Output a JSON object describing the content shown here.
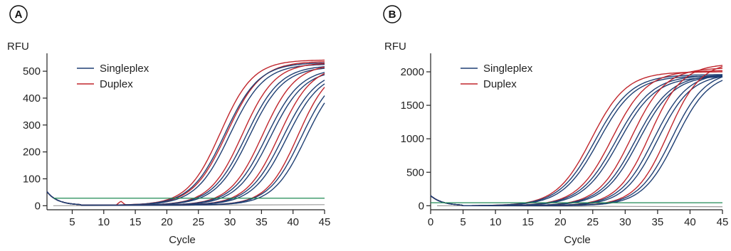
{
  "chart_data": [
    {
      "panel": "A",
      "type": "line",
      "ylabel": "RFU",
      "xlabel": "Cycle",
      "xlim": [
        1,
        45
      ],
      "ylim": [
        -15,
        540
      ],
      "xticks": [
        5,
        10,
        15,
        20,
        25,
        30,
        35,
        40,
        45
      ],
      "yticks": [
        0,
        100,
        200,
        300,
        400,
        500
      ],
      "legend_position": "top-left",
      "threshold": 28,
      "legend": [
        {
          "name": "Singleplex",
          "color": "#1f3f73"
        },
        {
          "name": "Duplex",
          "color": "#c0262d"
        }
      ],
      "series": [
        {
          "group": "Duplex",
          "midpoint": 28.5,
          "plateau": 540,
          "slope": 2.6
        },
        {
          "group": "Duplex",
          "midpoint": 29.5,
          "plateau": 535,
          "slope": 2.7
        },
        {
          "group": "Singleplex",
          "midpoint": 29.2,
          "plateau": 530,
          "slope": 2.7
        },
        {
          "group": "Singleplex",
          "midpoint": 30.0,
          "plateau": 525,
          "slope": 2.7
        },
        {
          "group": "Duplex",
          "midpoint": 32.0,
          "plateau": 530,
          "slope": 2.6
        },
        {
          "group": "Singleplex",
          "midpoint": 32.6,
          "plateau": 520,
          "slope": 2.7
        },
        {
          "group": "Singleplex",
          "midpoint": 33.1,
          "plateau": 515,
          "slope": 2.7
        },
        {
          "group": "Duplex",
          "midpoint": 35.2,
          "plateau": 525,
          "slope": 2.6
        },
        {
          "group": "Singleplex",
          "midpoint": 35.8,
          "plateau": 510,
          "slope": 2.7
        },
        {
          "group": "Singleplex",
          "midpoint": 36.4,
          "plateau": 505,
          "slope": 2.7
        },
        {
          "group": "Duplex",
          "midpoint": 37.8,
          "plateau": 520,
          "slope": 2.6
        },
        {
          "group": "Singleplex",
          "midpoint": 38.4,
          "plateau": 505,
          "slope": 2.7
        },
        {
          "group": "Singleplex",
          "midpoint": 39.0,
          "plateau": 500,
          "slope": 2.7
        },
        {
          "group": "Duplex",
          "midpoint": 40.8,
          "plateau": 520,
          "slope": 2.5
        },
        {
          "group": "Singleplex",
          "midpoint": 41.3,
          "plateau": 505,
          "slope": 2.6
        },
        {
          "group": "Singleplex",
          "midpoint": 42.0,
          "plateau": 500,
          "slope": 2.6
        }
      ]
    },
    {
      "panel": "B",
      "type": "line",
      "ylabel": "RFU",
      "xlabel": "Cycle",
      "xlim": [
        0,
        45
      ],
      "ylim": [
        -60,
        2170
      ],
      "xticks": [
        0,
        5,
        10,
        15,
        20,
        25,
        30,
        35,
        40,
        45
      ],
      "yticks": [
        0,
        500,
        1000,
        1500,
        2000
      ],
      "legend_position": "top-left",
      "threshold": 45,
      "legend": [
        {
          "name": "Singleplex",
          "color": "#1f3f73"
        },
        {
          "name": "Duplex",
          "color": "#c0262d"
        }
      ],
      "series": [
        {
          "group": "Duplex",
          "midpoint": 24.8,
          "plateau": 2000,
          "slope": 2.7
        },
        {
          "group": "Singleplex",
          "midpoint": 25.4,
          "plateau": 1960,
          "slope": 2.8
        },
        {
          "group": "Singleplex",
          "midpoint": 25.9,
          "plateau": 1940,
          "slope": 2.8
        },
        {
          "group": "Duplex",
          "midpoint": 28.0,
          "plateau": 2020,
          "slope": 2.7
        },
        {
          "group": "Singleplex",
          "midpoint": 28.6,
          "plateau": 1950,
          "slope": 2.8
        },
        {
          "group": "Singleplex",
          "midpoint": 29.1,
          "plateau": 1930,
          "slope": 2.8
        },
        {
          "group": "Duplex",
          "midpoint": 31.0,
          "plateau": 2060,
          "slope": 2.6
        },
        {
          "group": "Singleplex",
          "midpoint": 31.6,
          "plateau": 1960,
          "slope": 2.7
        },
        {
          "group": "Singleplex",
          "midpoint": 32.1,
          "plateau": 1950,
          "slope": 2.7
        },
        {
          "group": "Duplex",
          "midpoint": 33.8,
          "plateau": 2120,
          "slope": 2.5
        },
        {
          "group": "Singleplex",
          "midpoint": 34.4,
          "plateau": 1990,
          "slope": 2.6
        },
        {
          "group": "Singleplex",
          "midpoint": 35.0,
          "plateau": 1970,
          "slope": 2.6
        },
        {
          "group": "Duplex",
          "midpoint": 36.6,
          "plateau": 2150,
          "slope": 2.5
        },
        {
          "group": "Singleplex",
          "midpoint": 37.2,
          "plateau": 2020,
          "slope": 2.6
        },
        {
          "group": "Singleplex",
          "midpoint": 37.8,
          "plateau": 1990,
          "slope": 2.6
        }
      ]
    }
  ]
}
